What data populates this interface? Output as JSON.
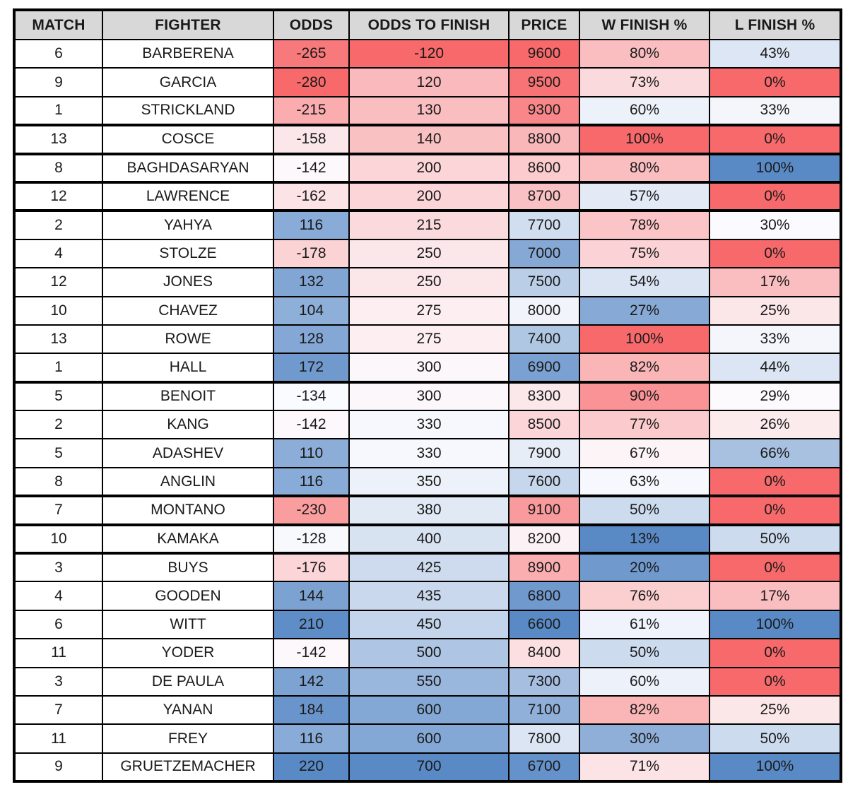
{
  "table": {
    "headers": [
      "MATCH",
      "FIGHTER",
      "ODDS",
      "ODDS TO FINISH",
      "PRICE",
      "W FINISH %",
      "L FINISH %"
    ],
    "rows": [
      [
        "6",
        "BARBERENA",
        "-265",
        "-120",
        "9600",
        "80%",
        "43%"
      ],
      [
        "9",
        "GARCIA",
        "-280",
        "120",
        "9500",
        "73%",
        "0%"
      ],
      [
        "1",
        "STRICKLAND",
        "-215",
        "130",
        "9300",
        "60%",
        "33%"
      ],
      [
        "13",
        "COSCE",
        "-158",
        "140",
        "8800",
        "100%",
        "0%"
      ],
      [
        "8",
        "BAGHDASARYAN",
        "-142",
        "200",
        "8600",
        "80%",
        "100%"
      ],
      [
        "12",
        "LAWRENCE",
        "-162",
        "200",
        "8700",
        "57%",
        "0%"
      ],
      [
        "2",
        "YAHYA",
        "116",
        "215",
        "7700",
        "78%",
        "30%"
      ],
      [
        "4",
        "STOLZE",
        "-178",
        "250",
        "7000",
        "75%",
        "0%"
      ],
      [
        "12",
        "JONES",
        "132",
        "250",
        "7500",
        "54%",
        "17%"
      ],
      [
        "10",
        "CHAVEZ",
        "104",
        "275",
        "8000",
        "27%",
        "25%"
      ],
      [
        "13",
        "ROWE",
        "128",
        "275",
        "7400",
        "100%",
        "33%"
      ],
      [
        "1",
        "HALL",
        "172",
        "300",
        "6900",
        "82%",
        "44%"
      ],
      [
        "5",
        "BENOIT",
        "-134",
        "300",
        "8300",
        "90%",
        "29%"
      ],
      [
        "2",
        "KANG",
        "-142",
        "330",
        "8500",
        "77%",
        "26%"
      ],
      [
        "5",
        "ADASHEV",
        "110",
        "330",
        "7900",
        "67%",
        "66%"
      ],
      [
        "8",
        "ANGLIN",
        "116",
        "350",
        "7600",
        "63%",
        "0%"
      ],
      [
        "7",
        "MONTANO",
        "-230",
        "380",
        "9100",
        "50%",
        "0%"
      ],
      [
        "10",
        "KAMAKA",
        "-128",
        "400",
        "8200",
        "13%",
        "50%"
      ],
      [
        "3",
        "BUYS",
        "-176",
        "425",
        "8900",
        "20%",
        "0%"
      ],
      [
        "4",
        "GOODEN",
        "144",
        "435",
        "6800",
        "76%",
        "17%"
      ],
      [
        "6",
        "WITT",
        "210",
        "450",
        "6600",
        "61%",
        "100%"
      ],
      [
        "11",
        "YODER",
        "-142",
        "500",
        "8400",
        "50%",
        "0%"
      ],
      [
        "3",
        "DE PAULA",
        "142",
        "550",
        "7300",
        "60%",
        "0%"
      ],
      [
        "7",
        "YANAN",
        "184",
        "600",
        "7100",
        "82%",
        "25%"
      ],
      [
        "11",
        "FREY",
        "116",
        "600",
        "7800",
        "30%",
        "50%"
      ],
      [
        "9",
        "GRUETZEMACHER",
        "220",
        "700",
        "6700",
        "71%",
        "100%"
      ]
    ],
    "thick_bottom_rows": [
      3,
      4,
      5,
      6,
      12,
      16,
      17,
      18
    ]
  },
  "format": {
    "header_bg": "#d8d8d8",
    "border_color": "#000000",
    "text_color": "#1a1a1a",
    "scale_red": "#F8696B",
    "scale_white": "#FCFCFF",
    "scale_blue": "#5A8AC6",
    "column_scales": {
      "2": {
        "min": -280,
        "mid": -138,
        "max": 220,
        "low": "red",
        "high": "blue"
      },
      "3": {
        "min": -120,
        "mid": 315,
        "max": 700,
        "low": "red",
        "high": "blue"
      },
      "4": {
        "min": 6600,
        "mid": 8100,
        "max": 9600,
        "low": "blue",
        "high": "red"
      },
      "5": {
        "min": 13,
        "mid": 65,
        "max": 100,
        "low": "blue",
        "high": "red"
      },
      "6": {
        "min": 0,
        "mid": 29.5,
        "max": 100,
        "low": "red",
        "high": "blue"
      }
    }
  },
  "chart_data": {
    "type": "table",
    "title": "Fighter odds and finish percentages with red-blue conditional formatting",
    "columns": [
      "MATCH",
      "FIGHTER",
      "ODDS",
      "ODDS TO FINISH",
      "PRICE",
      "W FINISH %",
      "L FINISH %"
    ],
    "rows": [
      {
        "match": 6,
        "fighter": "BARBERENA",
        "odds": -265,
        "odds_to_finish": -120,
        "price": 9600,
        "w_finish_pct": 80,
        "l_finish_pct": 43
      },
      {
        "match": 9,
        "fighter": "GARCIA",
        "odds": -280,
        "odds_to_finish": 120,
        "price": 9500,
        "w_finish_pct": 73,
        "l_finish_pct": 0
      },
      {
        "match": 1,
        "fighter": "STRICKLAND",
        "odds": -215,
        "odds_to_finish": 130,
        "price": 9300,
        "w_finish_pct": 60,
        "l_finish_pct": 33
      },
      {
        "match": 13,
        "fighter": "COSCE",
        "odds": -158,
        "odds_to_finish": 140,
        "price": 8800,
        "w_finish_pct": 100,
        "l_finish_pct": 0
      },
      {
        "match": 8,
        "fighter": "BAGHDASARYAN",
        "odds": -142,
        "odds_to_finish": 200,
        "price": 8600,
        "w_finish_pct": 80,
        "l_finish_pct": 100
      },
      {
        "match": 12,
        "fighter": "LAWRENCE",
        "odds": -162,
        "odds_to_finish": 200,
        "price": 8700,
        "w_finish_pct": 57,
        "l_finish_pct": 0
      },
      {
        "match": 2,
        "fighter": "YAHYA",
        "odds": 116,
        "odds_to_finish": 215,
        "price": 7700,
        "w_finish_pct": 78,
        "l_finish_pct": 30
      },
      {
        "match": 4,
        "fighter": "STOLZE",
        "odds": -178,
        "odds_to_finish": 250,
        "price": 7000,
        "w_finish_pct": 75,
        "l_finish_pct": 0
      },
      {
        "match": 12,
        "fighter": "JONES",
        "odds": 132,
        "odds_to_finish": 250,
        "price": 7500,
        "w_finish_pct": 54,
        "l_finish_pct": 17
      },
      {
        "match": 10,
        "fighter": "CHAVEZ",
        "odds": 104,
        "odds_to_finish": 275,
        "price": 8000,
        "w_finish_pct": 27,
        "l_finish_pct": 25
      },
      {
        "match": 13,
        "fighter": "ROWE",
        "odds": 128,
        "odds_to_finish": 275,
        "price": 7400,
        "w_finish_pct": 100,
        "l_finish_pct": 33
      },
      {
        "match": 1,
        "fighter": "HALL",
        "odds": 172,
        "odds_to_finish": 300,
        "price": 6900,
        "w_finish_pct": 82,
        "l_finish_pct": 44
      },
      {
        "match": 5,
        "fighter": "BENOIT",
        "odds": -134,
        "odds_to_finish": 300,
        "price": 8300,
        "w_finish_pct": 90,
        "l_finish_pct": 29
      },
      {
        "match": 2,
        "fighter": "KANG",
        "odds": -142,
        "odds_to_finish": 330,
        "price": 8500,
        "w_finish_pct": 77,
        "l_finish_pct": 26
      },
      {
        "match": 5,
        "fighter": "ADASHEV",
        "odds": 110,
        "odds_to_finish": 330,
        "price": 7900,
        "w_finish_pct": 67,
        "l_finish_pct": 66
      },
      {
        "match": 8,
        "fighter": "ANGLIN",
        "odds": 116,
        "odds_to_finish": 350,
        "price": 7600,
        "w_finish_pct": 63,
        "l_finish_pct": 0
      },
      {
        "match": 7,
        "fighter": "MONTANO",
        "odds": -230,
        "odds_to_finish": 380,
        "price": 9100,
        "w_finish_pct": 50,
        "l_finish_pct": 0
      },
      {
        "match": 10,
        "fighter": "KAMAKA",
        "odds": -128,
        "odds_to_finish": 400,
        "price": 8200,
        "w_finish_pct": 13,
        "l_finish_pct": 50
      },
      {
        "match": 3,
        "fighter": "BUYS",
        "odds": -176,
        "odds_to_finish": 425,
        "price": 8900,
        "w_finish_pct": 20,
        "l_finish_pct": 0
      },
      {
        "match": 4,
        "fighter": "GOODEN",
        "odds": 144,
        "odds_to_finish": 435,
        "price": 6800,
        "w_finish_pct": 76,
        "l_finish_pct": 17
      },
      {
        "match": 6,
        "fighter": "WITT",
        "odds": 210,
        "odds_to_finish": 450,
        "price": 6600,
        "w_finish_pct": 61,
        "l_finish_pct": 100
      },
      {
        "match": 11,
        "fighter": "YODER",
        "odds": -142,
        "odds_to_finish": 500,
        "price": 8400,
        "w_finish_pct": 50,
        "l_finish_pct": 0
      },
      {
        "match": 3,
        "fighter": "DE PAULA",
        "odds": 142,
        "odds_to_finish": 550,
        "price": 7300,
        "w_finish_pct": 60,
        "l_finish_pct": 0
      },
      {
        "match": 7,
        "fighter": "YANAN",
        "odds": 184,
        "odds_to_finish": 600,
        "price": 7100,
        "w_finish_pct": 82,
        "l_finish_pct": 25
      },
      {
        "match": 11,
        "fighter": "FREY",
        "odds": 116,
        "odds_to_finish": 600,
        "price": 7800,
        "w_finish_pct": 30,
        "l_finish_pct": 50
      },
      {
        "match": 9,
        "fighter": "GRUETZEMACHER",
        "odds": 220,
        "odds_to_finish": 700,
        "price": 6700,
        "w_finish_pct": 71,
        "l_finish_pct": 100
      }
    ],
    "legend": "3-color scale: ODDS / ODDS TO FINISH / L FINISH % red=low blue=high; PRICE / W FINISH % blue=low red=high",
    "grid": true
  }
}
